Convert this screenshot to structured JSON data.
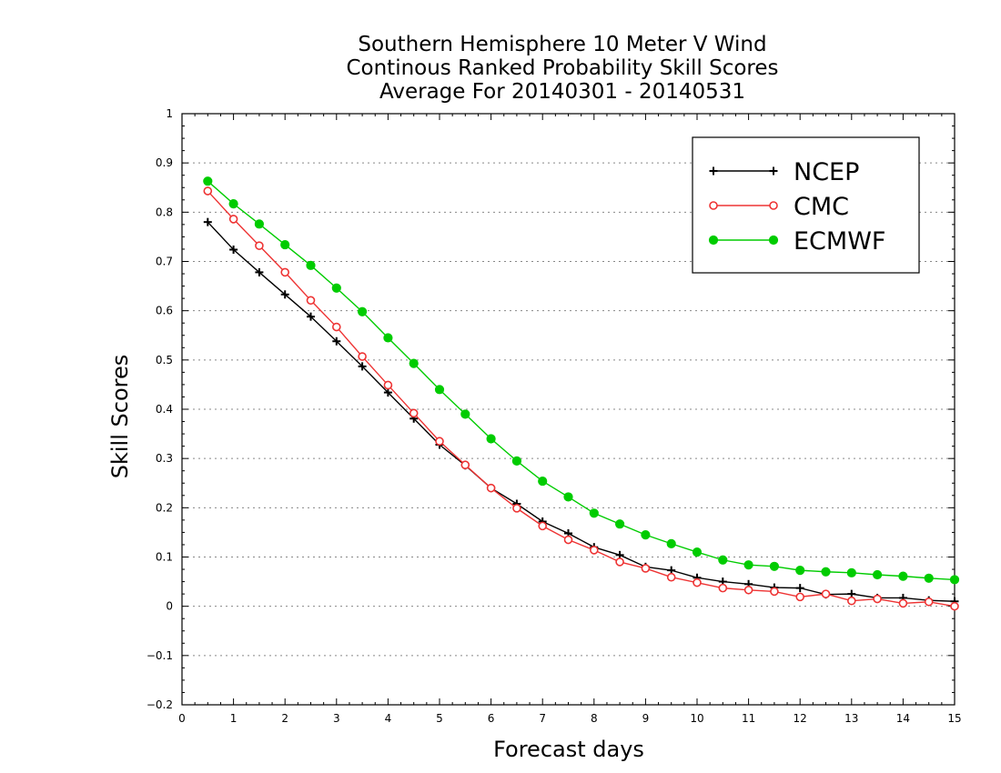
{
  "chart_data": {
    "type": "line",
    "title": [
      "Southern Hemisphere 10 Meter V Wind",
      "Continous Ranked Probability Skill Scores",
      "Average For 20140301 - 20140531"
    ],
    "xlabel": "Forecast days",
    "ylabel": "Skill Scores",
    "xlim": [
      0,
      15
    ],
    "ylim": [
      -0.2,
      1
    ],
    "xticks": [
      0,
      1,
      2,
      3,
      4,
      5,
      6,
      7,
      8,
      9,
      10,
      11,
      12,
      13,
      14,
      15
    ],
    "xtick_labels": [
      "0",
      "1",
      "2",
      "3",
      "4",
      "5",
      "6",
      "7",
      "8",
      "9",
      "10",
      "11",
      "12",
      "13",
      "14",
      "15"
    ],
    "yticks": [
      -0.2,
      -0.1,
      0,
      0.1,
      0.2,
      0.3,
      0.4,
      0.5,
      0.6,
      0.7,
      0.8,
      0.9,
      1
    ],
    "ytick_labels": [
      "−0.2",
      "−0.1",
      "0",
      "0.1",
      "0.2",
      "0.3",
      "0.4",
      "0.5",
      "0.6",
      "0.7",
      "0.8",
      "0.9",
      "1"
    ],
    "grid": "horizontal dotted",
    "legend_position": "top-right",
    "x": [
      0.5,
      1,
      1.5,
      2,
      2.5,
      3,
      3.5,
      4,
      4.5,
      5,
      5.5,
      6,
      6.5,
      7,
      7.5,
      8,
      8.5,
      9,
      9.5,
      10,
      10.5,
      11,
      11.5,
      12,
      12.5,
      13,
      13.5,
      14,
      14.5,
      15
    ],
    "series": [
      {
        "name": "NCEP",
        "color": "#000000",
        "marker": "plus",
        "values": [
          0.78,
          0.724,
          0.678,
          0.633,
          0.588,
          0.538,
          0.487,
          0.434,
          0.381,
          0.328,
          0.286,
          0.24,
          0.208,
          0.172,
          0.148,
          0.12,
          0.104,
          0.08,
          0.073,
          0.058,
          0.05,
          0.045,
          0.038,
          0.037,
          0.024,
          0.025,
          0.017,
          0.017,
          0.012,
          0.01
        ]
      },
      {
        "name": "CMC",
        "color": "#ee3333",
        "marker": "open-circle",
        "values": [
          0.843,
          0.786,
          0.732,
          0.678,
          0.621,
          0.567,
          0.507,
          0.449,
          0.392,
          0.335,
          0.287,
          0.24,
          0.199,
          0.163,
          0.135,
          0.114,
          0.09,
          0.077,
          0.059,
          0.048,
          0.037,
          0.033,
          0.03,
          0.019,
          0.025,
          0.011,
          0.015,
          0.006,
          0.009,
          0.0
        ]
      },
      {
        "name": "ECMWF",
        "color": "#00cc00",
        "marker": "filled-circle",
        "values": [
          0.863,
          0.817,
          0.776,
          0.734,
          0.692,
          0.646,
          0.598,
          0.545,
          0.493,
          0.44,
          0.39,
          0.34,
          0.295,
          0.254,
          0.222,
          0.189,
          0.167,
          0.145,
          0.127,
          0.11,
          0.094,
          0.084,
          0.081,
          0.073,
          0.07,
          0.068,
          0.064,
          0.061,
          0.057,
          0.054
        ]
      }
    ]
  }
}
